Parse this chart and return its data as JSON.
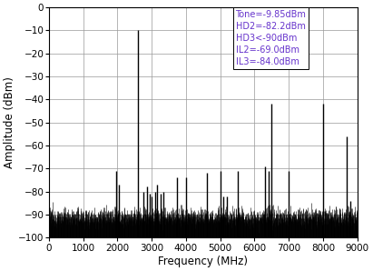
{
  "xlabel": "Frequency (MHz)",
  "ylabel": "Amplitude (dBm)",
  "xlim": [
    0,
    9000
  ],
  "ylim": [
    -100,
    0
  ],
  "xticks": [
    0,
    1000,
    2000,
    3000,
    4000,
    5000,
    6000,
    7000,
    8000,
    9000
  ],
  "yticks": [
    0,
    -10,
    -20,
    -30,
    -40,
    -50,
    -60,
    -70,
    -80,
    -90,
    -100
  ],
  "annotation_lines": [
    "Tone=-9.85dBm",
    "HD2=-82.2dBm",
    "HD3<-90dBm",
    "IL2=-69.0dBm",
    "IL3=-84.0dBm"
  ],
  "annotation_color": "#6633CC",
  "noise_floor_mean": -91,
  "noise_floor_std": 2.0,
  "noise_clip_min": -100,
  "noise_clip_max": -84,
  "key_spurs": [
    {
      "freq": 2600,
      "amp": -9.85
    },
    {
      "freq": 1950,
      "amp": -71
    },
    {
      "freq": 2050,
      "amp": -77
    },
    {
      "freq": 2750,
      "amp": -80
    },
    {
      "freq": 2850,
      "amp": -78
    },
    {
      "freq": 2950,
      "amp": -81
    },
    {
      "freq": 3000,
      "amp": -82
    },
    {
      "freq": 3100,
      "amp": -80
    },
    {
      "freq": 3150,
      "amp": -77
    },
    {
      "freq": 3250,
      "amp": -81
    },
    {
      "freq": 3350,
      "amp": -80
    },
    {
      "freq": 3750,
      "amp": -74
    },
    {
      "freq": 4000,
      "amp": -74
    },
    {
      "freq": 4600,
      "amp": -72
    },
    {
      "freq": 5000,
      "amp": -71
    },
    {
      "freq": 5100,
      "amp": -82
    },
    {
      "freq": 5200,
      "amp": -82
    },
    {
      "freq": 5500,
      "amp": -71
    },
    {
      "freq": 6300,
      "amp": -69
    },
    {
      "freq": 6400,
      "amp": -71
    },
    {
      "freq": 7000,
      "amp": -71
    },
    {
      "freq": 6500,
      "amp": -42
    },
    {
      "freq": 8000,
      "amp": -42
    },
    {
      "freq": 8700,
      "amp": -56
    },
    {
      "freq": 8800,
      "amp": -84
    }
  ],
  "bar_color": "black",
  "bg_color": "white",
  "grid_color": "#999999"
}
